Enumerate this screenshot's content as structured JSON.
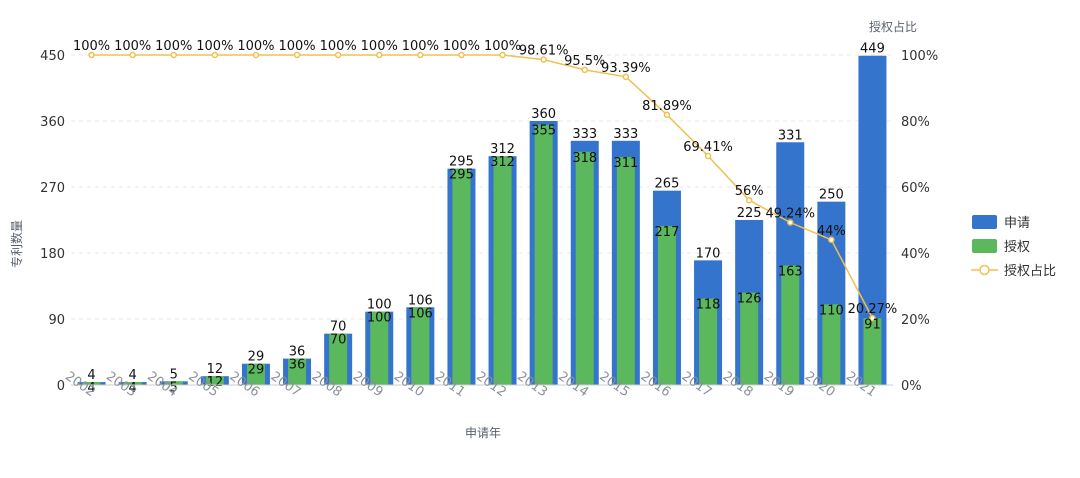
{
  "chart_data": {
    "type": "bar",
    "categories": [
      "2002",
      "2003",
      "2004",
      "2005",
      "2006",
      "2007",
      "2008",
      "2009",
      "2010",
      "2011",
      "2012",
      "2013",
      "2014",
      "2015",
      "2016",
      "2017",
      "2018",
      "2019",
      "2020",
      "2021"
    ],
    "series": [
      {
        "name": "申请",
        "type": "bar",
        "color": "#3574cd",
        "values": [
          4,
          4,
          5,
          12,
          29,
          36,
          70,
          100,
          106,
          295,
          312,
          360,
          333,
          333,
          265,
          170,
          225,
          331,
          250,
          449
        ]
      },
      {
        "name": "授权",
        "type": "bar",
        "color": "#5cb85c",
        "values": [
          4,
          4,
          5,
          12,
          29,
          36,
          70,
          100,
          106,
          295,
          312,
          355,
          318,
          311,
          217,
          118,
          126,
          163,
          110,
          91
        ]
      },
      {
        "name": "授权占比",
        "type": "line",
        "color": "#f0c050",
        "axis": "right",
        "values": [
          100,
          100,
          100,
          100,
          100,
          100,
          100,
          100,
          100,
          100,
          100,
          98.61,
          95.5,
          93.39,
          81.89,
          69.41,
          56,
          49.24,
          44,
          20.27
        ],
        "labels": [
          "100%",
          "100%",
          "100%",
          "100%",
          "100%",
          "100%",
          "100%",
          "100%",
          "100%",
          "100%",
          "100%",
          "98.61%",
          "95.5%",
          "93.39%",
          "81.89%",
          "69.41%",
          "56%",
          "49.24%",
          "44%",
          "20.27%"
        ]
      }
    ],
    "xlabel": "申请年",
    "ylabel": "专利数量",
    "y2label": "授权占比",
    "ylim": [
      0,
      450
    ],
    "yticks": [
      "0",
      "90",
      "180",
      "270",
      "360",
      "450"
    ],
    "y2lim": [
      0,
      100
    ],
    "y2ticks": [
      "0%",
      "20%",
      "40%",
      "60%",
      "80%",
      "100%"
    ],
    "grid": true,
    "legend": "right"
  }
}
